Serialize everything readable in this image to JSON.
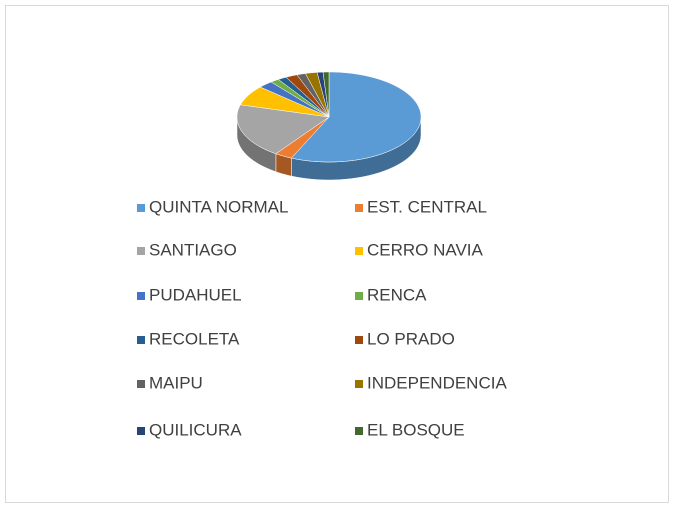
{
  "chart_data": {
    "type": "pie",
    "categories": [
      "QUINTA NORMAL",
      "EST. CENTRAL",
      "SANTIAGO",
      "CERRO NAVIA",
      "PUDAHUEL",
      "RENCA",
      "RECOLETA",
      "LO PRADO",
      "MAIPU",
      "INDEPENDENCIA",
      "QUILICURA",
      "EL BOSQUE"
    ],
    "values": [
      55,
      3,
      19,
      7,
      2.5,
      1.5,
      1.5,
      2,
      1.5,
      2,
      1,
      1
    ],
    "colors": [
      "#5b9bd5",
      "#ed7d31",
      "#a5a5a5",
      "#ffc000",
      "#4472c4",
      "#70ad47",
      "#255e91",
      "#9e480e",
      "#636363",
      "#997300",
      "#264478",
      "#43682b"
    ],
    "legend": "bottom"
  }
}
